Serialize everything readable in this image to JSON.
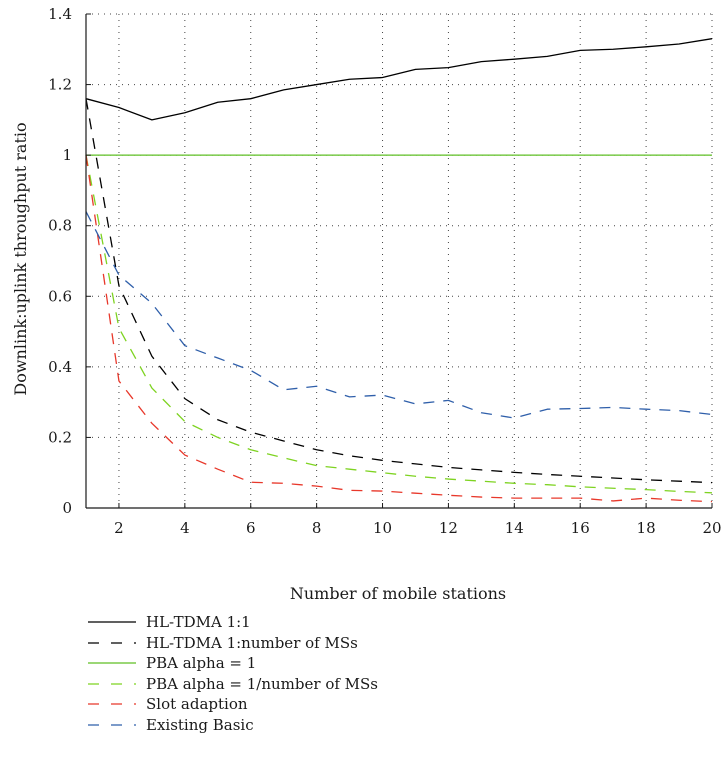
{
  "chart_data": {
    "type": "line",
    "xlabel": "Number of mobile stations",
    "ylabel": "Downlink:uplink throughput ratio",
    "xlim": [
      1,
      20
    ],
    "ylim": [
      0,
      1.4
    ],
    "xticks": [
      2,
      4,
      6,
      8,
      10,
      12,
      14,
      16,
      18,
      20
    ],
    "yticks": [
      0,
      0.2,
      0.4,
      0.6,
      0.8,
      1,
      1.2,
      1.4
    ],
    "ytick_labels": [
      "0",
      "0.2",
      "0.4",
      "0.6",
      "0.8",
      "1",
      "1.2",
      "1.4"
    ],
    "grid": true,
    "legend_position": "below",
    "x": [
      1,
      2,
      3,
      4,
      5,
      6,
      7,
      8,
      9,
      10,
      11,
      12,
      13,
      14,
      15,
      16,
      17,
      18,
      19,
      20
    ],
    "series": [
      {
        "name": "HL-TDMA 1:1",
        "color": "#000000",
        "dash": "solid",
        "values": [
          1.16,
          1.135,
          1.1,
          1.12,
          1.15,
          1.16,
          1.185,
          1.2,
          1.215,
          1.22,
          1.243,
          1.248,
          1.265,
          1.272,
          1.28,
          1.297,
          1.3,
          1.307,
          1.315,
          1.33
        ]
      },
      {
        "name": "HL-TDMA 1:number of MSs",
        "color": "#000000",
        "dash": "dashed",
        "values": [
          1.16,
          0.63,
          0.43,
          0.31,
          0.25,
          0.215,
          0.19,
          0.165,
          0.148,
          0.135,
          0.125,
          0.115,
          0.108,
          0.101,
          0.095,
          0.09,
          0.085,
          0.08,
          0.076,
          0.072
        ]
      },
      {
        "name": "PBA alpha = 1",
        "color": "#5fbf24",
        "dash": "solid",
        "values": [
          1,
          1,
          1,
          1,
          1,
          1,
          1,
          1,
          1,
          1,
          1,
          1,
          1,
          1,
          1,
          1,
          1,
          1,
          1,
          1
        ]
      },
      {
        "name": "PBA alpha = 1/number of MSs",
        "color": "#7ed321",
        "dash": "dashed",
        "values": [
          1.0,
          0.51,
          0.34,
          0.245,
          0.2,
          0.165,
          0.142,
          0.12,
          0.11,
          0.1,
          0.09,
          0.082,
          0.076,
          0.07,
          0.066,
          0.06,
          0.056,
          0.052,
          0.047,
          0.043
        ]
      },
      {
        "name": "Slot adaption",
        "color": "#e8382b",
        "dash": "dashed",
        "values": [
          1.0,
          0.36,
          0.24,
          0.15,
          0.11,
          0.073,
          0.07,
          0.062,
          0.05,
          0.048,
          0.042,
          0.036,
          0.031,
          0.028,
          0.028,
          0.028,
          0.02,
          0.028,
          0.022,
          0.018
        ]
      },
      {
        "name": "Existing Basic",
        "color": "#2f5faa",
        "dash": "dashed",
        "values": [
          0.84,
          0.66,
          0.58,
          0.46,
          0.425,
          0.39,
          0.335,
          0.345,
          0.315,
          0.32,
          0.295,
          0.305,
          0.27,
          0.255,
          0.28,
          0.282,
          0.285,
          0.28,
          0.276,
          0.265
        ]
      }
    ]
  }
}
